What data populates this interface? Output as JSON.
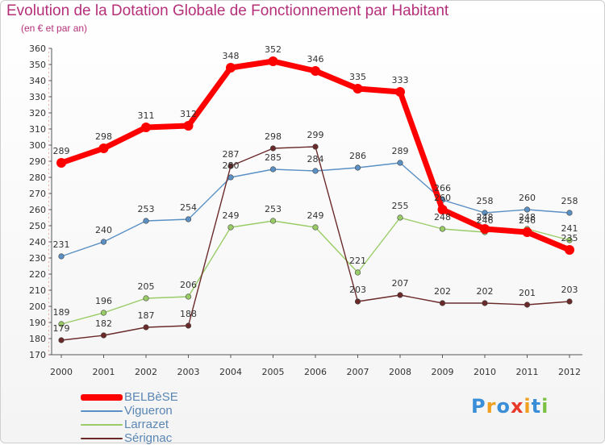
{
  "header": {
    "title": "Evolution de la Dotation Globale de Fonctionnement par Habitant",
    "subtitle": "(en € et par an)"
  },
  "chart_data": {
    "type": "line",
    "title": "Evolution de la Dotation Globale de Fonctionnement par Habitant",
    "subtitle": "(en € et par an)",
    "x": [
      "2000",
      "2001",
      "2002",
      "2003",
      "2004",
      "2005",
      "2006",
      "2007",
      "2008",
      "2009",
      "2010",
      "2011",
      "2012"
    ],
    "ylim": [
      170,
      360
    ],
    "yticks": [
      170,
      180,
      190,
      200,
      210,
      220,
      230,
      240,
      250,
      260,
      270,
      280,
      290,
      300,
      310,
      320,
      330,
      340,
      350,
      360
    ],
    "grid": false,
    "legend_position": "bottom-left",
    "series": [
      {
        "name": "BELBèSE",
        "color": "#ff0000",
        "values": [
          289,
          298,
          311,
          312,
          348,
          352,
          346,
          335,
          333,
          260,
          248,
          246,
          235
        ]
      },
      {
        "name": "Vigueron",
        "color": "#5a90c4",
        "values": [
          231,
          240,
          253,
          254,
          280,
          285,
          284,
          286,
          289,
          266,
          258,
          260,
          258
        ]
      },
      {
        "name": "Larrazet",
        "color": "#99cc66",
        "values": [
          189,
          196,
          205,
          206,
          249,
          253,
          249,
          221,
          255,
          248,
          246,
          248,
          241
        ]
      },
      {
        "name": "Sérignac",
        "color": "#6b2a2a",
        "values": [
          179,
          182,
          187,
          188,
          287,
          298,
          299,
          203,
          207,
          202,
          202,
          201,
          203
        ]
      }
    ]
  },
  "logo": {
    "letters": [
      "P",
      "r",
      "o",
      "x",
      "i",
      "t",
      "i"
    ],
    "colors": [
      "#3a8ed8",
      "#f0a020",
      "#3a8ed8",
      "#e83a2a",
      "#f0a020",
      "#3a8ed8",
      "#7cc242"
    ]
  }
}
